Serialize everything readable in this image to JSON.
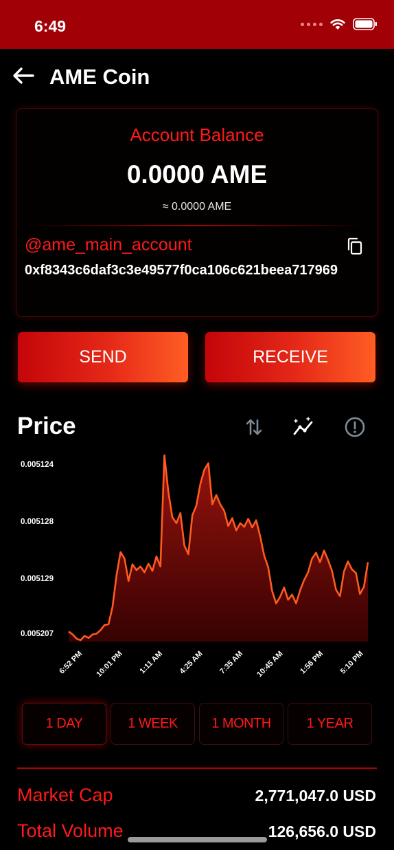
{
  "status": {
    "time": "6:49"
  },
  "header": {
    "title": "AME Coin"
  },
  "account": {
    "balance_label": "Account Balance",
    "balance_value": "0.0000 AME",
    "balance_equivalent": "≈ 0.0000 AME",
    "handle": "@ame_main_account",
    "address": "0xf8343c6daf3c3e49577f0ca106c621beea717969"
  },
  "actions": {
    "send_label": "SEND",
    "receive_label": "RECEIVE"
  },
  "price": {
    "title": "Price"
  },
  "chart_data": {
    "type": "area",
    "y_tick_labels": [
      "0.005124",
      "0.005128",
      "0.005129",
      "0.005207"
    ],
    "x_tick_labels": [
      "6:52 PM",
      "10:01 PM",
      "1:11 AM",
      "4:25 AM",
      "7:35 AM",
      "10:45 AM",
      "1:56 PM",
      "5:10 PM"
    ],
    "values": [
      14,
      10,
      4,
      2,
      8,
      5,
      10,
      11,
      16,
      23,
      24,
      48,
      92,
      124,
      115,
      84,
      107,
      99,
      104,
      96,
      108,
      98,
      118,
      104,
      258,
      207,
      172,
      164,
      178,
      133,
      121,
      175,
      188,
      218,
      238,
      247,
      190,
      203,
      190,
      181,
      160,
      171,
      154,
      164,
      159,
      170,
      158,
      168,
      146,
      119,
      103,
      70,
      53,
      62,
      75,
      58,
      65,
      53,
      71,
      85,
      96,
      115,
      123,
      110,
      126,
      113,
      98,
      72,
      63,
      97,
      111,
      100,
      95,
      66,
      76,
      110
    ],
    "line_color": "#ff5a1f",
    "fill_color": "#8a0d0d"
  },
  "ranges": {
    "items": [
      "1 DAY",
      "1 WEEK",
      "1 MONTH",
      "1 YEAR"
    ],
    "active": "1 DAY"
  },
  "stats": {
    "market_cap_label": "Market Cap",
    "market_cap_value": "2,771,047.0 USD",
    "total_volume_label": "Total Volume",
    "total_volume_value": "126,656.0 USD"
  }
}
